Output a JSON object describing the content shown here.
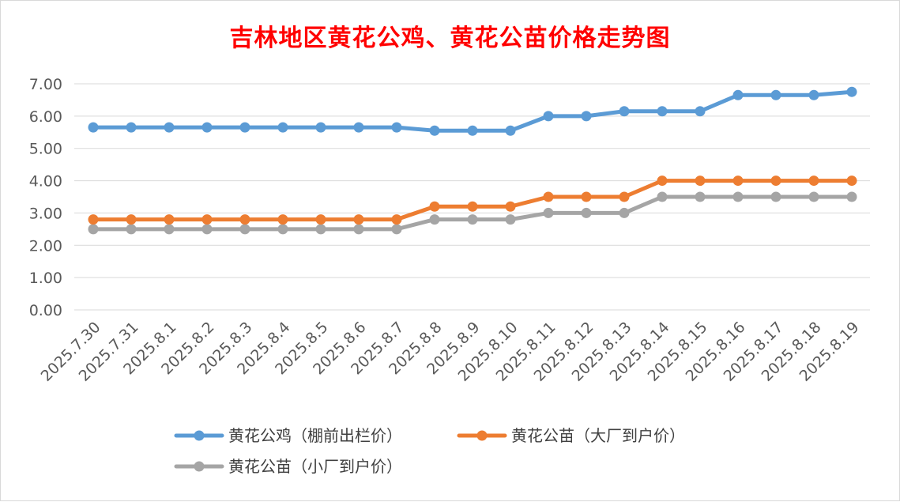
{
  "chart_data": {
    "type": "line",
    "title": "吉林地区黄花公鸡、黄花公苗价格走势图",
    "xlabel": "",
    "ylabel": "",
    "ylim": [
      0,
      7
    ],
    "yticks": [
      "0.00",
      "1.00",
      "2.00",
      "3.00",
      "4.00",
      "5.00",
      "6.00",
      "7.00"
    ],
    "grid": true,
    "legend": "bottom",
    "x": [
      "2025.7.30",
      "2025.7.31",
      "2025.8.1",
      "2025.8.2",
      "2025.8.3",
      "2025.8.4",
      "2025.8.5",
      "2025.8.6",
      "2025.8.7",
      "2025.8.8",
      "2025.8.9",
      "2025.8.10",
      "2025.8.11",
      "2025.8.12",
      "2025.8.13",
      "2025.8.14",
      "2025.8.15",
      "2025.8.16",
      "2025.8.17",
      "2025.8.18",
      "2025.8.19"
    ],
    "series": [
      {
        "name": "黄花公鸡（棚前出栏价）",
        "color": "#5b9bd5",
        "values": [
          5.65,
          5.65,
          5.65,
          5.65,
          5.65,
          5.65,
          5.65,
          5.65,
          5.65,
          5.55,
          5.55,
          5.55,
          6.0,
          6.0,
          6.15,
          6.15,
          6.15,
          6.65,
          6.65,
          6.65,
          6.75
        ]
      },
      {
        "name": "黄花公苗（大厂到户价）",
        "color": "#ed7d31",
        "values": [
          2.8,
          2.8,
          2.8,
          2.8,
          2.8,
          2.8,
          2.8,
          2.8,
          2.8,
          3.2,
          3.2,
          3.2,
          3.5,
          3.5,
          3.5,
          4.0,
          4.0,
          4.0,
          4.0,
          4.0,
          4.0
        ]
      },
      {
        "name": "黄花公苗（小厂到户价）",
        "color": "#a5a5a5",
        "values": [
          2.5,
          2.5,
          2.5,
          2.5,
          2.5,
          2.5,
          2.5,
          2.5,
          2.5,
          2.8,
          2.8,
          2.8,
          3.0,
          3.0,
          3.0,
          3.5,
          3.5,
          3.5,
          3.5,
          3.5,
          3.5
        ]
      }
    ]
  }
}
